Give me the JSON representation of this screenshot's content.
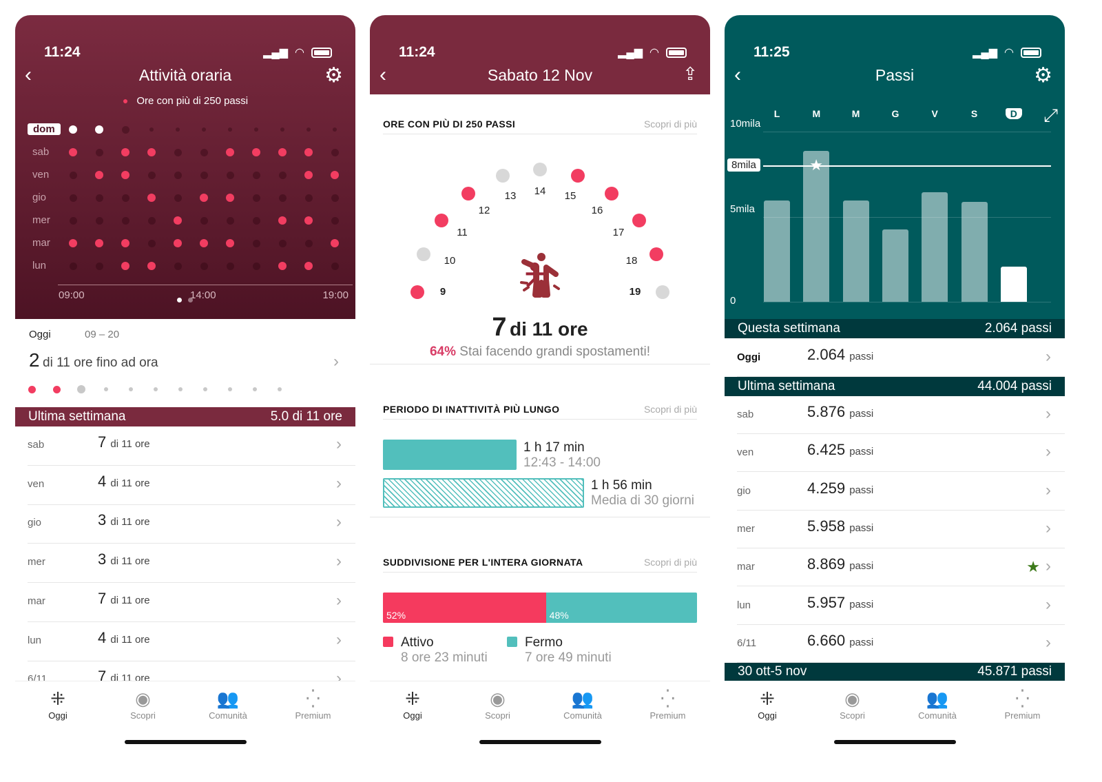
{
  "colors": {
    "maroon": "#7a2a3e",
    "maroon_dark": "#4e1325",
    "pink": "#f23d61",
    "teal_dark": "#005a5c",
    "teal_band": "#00393d",
    "teal": "#52bfbc",
    "grey_dot": "#d8d8d8"
  },
  "status": [
    {
      "time": "11:24"
    },
    {
      "time": "11:24"
    },
    {
      "time": "11:25"
    }
  ],
  "tabbar": [
    {
      "label": "Oggi",
      "icon": "fitbit-dots-icon"
    },
    {
      "label": "Scopri",
      "icon": "compass-icon"
    },
    {
      "label": "Comunità",
      "icon": "community-icon"
    },
    {
      "label": "Premium",
      "icon": "premium-dots-icon"
    }
  ],
  "left": {
    "title": "Attività oraria",
    "legend": "Ore con più di 250 passi",
    "grid": {
      "days": [
        "dom",
        "sab",
        "ven",
        "gio",
        "mer",
        "mar",
        "lun"
      ],
      "hours_labels": [
        "09:00",
        "14:00",
        "19:00"
      ],
      "rows": [
        [
          2,
          2,
          0,
          0,
          0,
          0,
          0,
          0,
          0,
          0,
          0
        ],
        [
          1,
          0,
          1,
          1,
          0,
          0,
          1,
          1,
          1,
          1,
          0
        ],
        [
          0,
          1,
          1,
          0,
          0,
          0,
          0,
          0,
          0,
          1,
          1
        ],
        [
          0,
          0,
          0,
          1,
          0,
          1,
          1,
          0,
          0,
          0,
          0
        ],
        [
          0,
          0,
          0,
          0,
          1,
          0,
          0,
          0,
          1,
          1,
          0
        ],
        [
          1,
          1,
          1,
          0,
          1,
          1,
          1,
          0,
          0,
          0,
          1
        ],
        [
          0,
          0,
          1,
          1,
          0,
          0,
          0,
          0,
          1,
          1,
          0
        ]
      ]
    },
    "today": {
      "label": "Oggi",
      "range": "09 – 20",
      "value": "2",
      "text": "di 11 ore fino ad ora",
      "dots": [
        1,
        1,
        2,
        0,
        0,
        0,
        0,
        0,
        0,
        0,
        0
      ]
    },
    "week_band": {
      "label": "Ultima settimana",
      "value": "5.0 di 11 ore"
    },
    "rows": [
      {
        "day": "sab",
        "value": "7",
        "unit": "di 11 ore"
      },
      {
        "day": "ven",
        "value": "4",
        "unit": "di 11 ore"
      },
      {
        "day": "gio",
        "value": "3",
        "unit": "di 11 ore"
      },
      {
        "day": "mer",
        "value": "3",
        "unit": "di 11 ore"
      },
      {
        "day": "mar",
        "value": "7",
        "unit": "di 11 ore"
      },
      {
        "day": "lun",
        "value": "4",
        "unit": "di 11 ore"
      },
      {
        "day": "6/11",
        "value": "7",
        "unit": "di 11 ore"
      }
    ]
  },
  "middle": {
    "title": "Sabato 12 Nov",
    "section1": {
      "title": "ORE CON PIÙ DI 250 PASSI",
      "link": "Scopri di più"
    },
    "dial": {
      "hours": [
        "9",
        "10",
        "11",
        "12",
        "13",
        "14",
        "15",
        "16",
        "17",
        "18",
        "19"
      ],
      "active": [
        1,
        0,
        1,
        1,
        0,
        0,
        1,
        1,
        1,
        1,
        0
      ]
    },
    "summary": {
      "value": "7",
      "text": "di 11 ore",
      "percent": "64%",
      "message": "Stai facendo grandi spostamenti!"
    },
    "section2": {
      "title": "PERIODO DI INATTIVITÀ PIÙ LUNGO",
      "link": "Scopri di più"
    },
    "inactivity": [
      {
        "duration": "1 h 17 min",
        "sub": "12:43 - 14:00",
        "minutes": 77
      },
      {
        "duration": "1 h 56 min",
        "sub": "Media di 30 giorni",
        "minutes": 116
      }
    ],
    "section3": {
      "title": "SUDDIVISIONE PER L'INTERA GIORNATA",
      "link": "Scopri di più"
    },
    "split": {
      "active_pct": 52,
      "active_label": "52%",
      "still_label": "48%"
    },
    "legend": [
      {
        "label": "Attivo",
        "sub": "8 ore 23 minuti"
      },
      {
        "label": "Fermo",
        "sub": "7 ore 49 minuti"
      }
    ]
  },
  "right": {
    "title": "Passi",
    "chart_data": {
      "type": "bar",
      "categories": [
        "L",
        "M",
        "M",
        "G",
        "V",
        "S",
        "D"
      ],
      "values": [
        5957,
        8869,
        5958,
        4259,
        6425,
        5876,
        2064
      ],
      "ylim": [
        0,
        10000
      ],
      "yticks": [
        {
          "v": 0,
          "label": "0"
        },
        {
          "v": 5000,
          "label": "5mila"
        },
        {
          "v": 10000,
          "label": "10mila"
        }
      ],
      "goal": {
        "v": 8000,
        "label": "8mila"
      },
      "selected": "D"
    },
    "this_week": {
      "label": "Questa settimana",
      "value": "2.064 passi"
    },
    "today": {
      "day": "Oggi",
      "value": "2.064",
      "unit": "passi"
    },
    "last_week": {
      "label": "Ultima settimana",
      "value": "44.004 passi"
    },
    "rows": [
      {
        "day": "sab",
        "value": "5.876",
        "unit": "passi"
      },
      {
        "day": "ven",
        "value": "6.425",
        "unit": "passi"
      },
      {
        "day": "gio",
        "value": "4.259",
        "unit": "passi"
      },
      {
        "day": "mer",
        "value": "5.958",
        "unit": "passi"
      },
      {
        "day": "mar",
        "value": "8.869",
        "unit": "passi",
        "star": true
      },
      {
        "day": "lun",
        "value": "5.957",
        "unit": "passi"
      },
      {
        "day": "6/11",
        "value": "6.660",
        "unit": "passi"
      }
    ],
    "prev_week": {
      "label": "30 ott-5 nov",
      "value": "45.871 passi"
    }
  }
}
